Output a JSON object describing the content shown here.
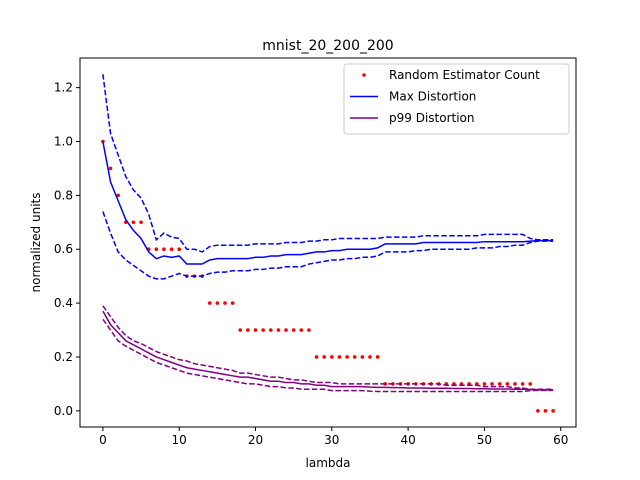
{
  "chart_data": {
    "type": "line",
    "title": "mnist_20_200_200",
    "xlabel": "lambda",
    "ylabel": "normalized units",
    "xlim": [
      -3.0,
      62.0
    ],
    "ylim": [
      -0.06,
      1.31
    ],
    "xticks": [
      0,
      10,
      20,
      30,
      40,
      50,
      60
    ],
    "yticks": [
      0.0,
      0.2,
      0.4,
      0.6,
      0.8,
      1.0,
      1.2
    ],
    "xtick_labels": [
      "0",
      "10",
      "20",
      "30",
      "40",
      "50",
      "60"
    ],
    "ytick_labels": [
      "0.0",
      "0.2",
      "0.4",
      "0.6",
      "0.8",
      "1.0",
      "1.2"
    ],
    "grid": false,
    "legend_position": "top-right",
    "x": [
      0,
      1,
      2,
      3,
      4,
      5,
      6,
      7,
      8,
      9,
      10,
      11,
      12,
      13,
      14,
      15,
      16,
      17,
      18,
      19,
      20,
      21,
      22,
      23,
      24,
      25,
      26,
      27,
      28,
      29,
      30,
      31,
      32,
      33,
      34,
      35,
      36,
      37,
      38,
      39,
      40,
      41,
      42,
      43,
      44,
      45,
      46,
      47,
      48,
      49,
      50,
      51,
      52,
      53,
      54,
      55,
      56,
      57,
      58,
      59
    ],
    "series": [
      {
        "name": "Random Estimator Count",
        "style": "dots",
        "color": "#ff0000",
        "values": [
          1.0,
          0.9,
          0.8,
          0.7,
          0.7,
          0.7,
          0.6,
          0.6,
          0.6,
          0.6,
          0.6,
          0.5,
          0.5,
          0.5,
          0.4,
          0.4,
          0.4,
          0.4,
          0.3,
          0.3,
          0.3,
          0.3,
          0.3,
          0.3,
          0.3,
          0.3,
          0.3,
          0.3,
          0.2,
          0.2,
          0.2,
          0.2,
          0.2,
          0.2,
          0.2,
          0.2,
          0.2,
          0.1,
          0.1,
          0.1,
          0.1,
          0.1,
          0.1,
          0.1,
          0.1,
          0.1,
          0.1,
          0.1,
          0.1,
          0.1,
          0.1,
          0.1,
          0.1,
          0.1,
          0.1,
          0.1,
          0.1,
          0.0,
          0.0,
          0.0
        ]
      },
      {
        "name": "Max Distortion",
        "style": "line",
        "color": "#0000ff",
        "values": [
          1.0,
          0.85,
          0.78,
          0.71,
          0.67,
          0.64,
          0.59,
          0.565,
          0.575,
          0.57,
          0.575,
          0.545,
          0.545,
          0.545,
          0.56,
          0.565,
          0.565,
          0.565,
          0.565,
          0.565,
          0.57,
          0.57,
          0.575,
          0.575,
          0.58,
          0.58,
          0.58,
          0.585,
          0.59,
          0.59,
          0.595,
          0.595,
          0.6,
          0.6,
          0.6,
          0.6,
          0.605,
          0.62,
          0.62,
          0.62,
          0.62,
          0.62,
          0.625,
          0.625,
          0.625,
          0.625,
          0.625,
          0.625,
          0.625,
          0.625,
          0.628,
          0.628,
          0.628,
          0.628,
          0.628,
          0.628,
          0.63,
          0.632,
          0.632,
          0.632
        ],
        "upper": [
          1.25,
          1.03,
          0.95,
          0.87,
          0.82,
          0.79,
          0.73,
          0.635,
          0.66,
          0.645,
          0.64,
          0.6,
          0.6,
          0.59,
          0.61,
          0.615,
          0.615,
          0.615,
          0.615,
          0.615,
          0.62,
          0.62,
          0.62,
          0.62,
          0.625,
          0.625,
          0.625,
          0.63,
          0.63,
          0.635,
          0.635,
          0.64,
          0.64,
          0.64,
          0.64,
          0.64,
          0.64,
          0.645,
          0.645,
          0.645,
          0.645,
          0.645,
          0.65,
          0.65,
          0.65,
          0.65,
          0.65,
          0.65,
          0.65,
          0.65,
          0.655,
          0.655,
          0.655,
          0.655,
          0.655,
          0.655,
          0.64,
          0.635,
          0.635,
          0.635
        ],
        "lower": [
          0.74,
          0.66,
          0.59,
          0.56,
          0.54,
          0.52,
          0.5,
          0.49,
          0.49,
          0.5,
          0.51,
          0.5,
          0.5,
          0.5,
          0.51,
          0.515,
          0.515,
          0.52,
          0.52,
          0.52,
          0.525,
          0.525,
          0.53,
          0.53,
          0.535,
          0.535,
          0.535,
          0.545,
          0.55,
          0.555,
          0.56,
          0.56,
          0.565,
          0.565,
          0.57,
          0.57,
          0.575,
          0.59,
          0.59,
          0.59,
          0.59,
          0.595,
          0.595,
          0.6,
          0.6,
          0.6,
          0.6,
          0.6,
          0.6,
          0.605,
          0.605,
          0.605,
          0.61,
          0.61,
          0.615,
          0.615,
          0.625,
          0.63,
          0.63,
          0.63
        ]
      },
      {
        "name": "p99 Distortion",
        "style": "line",
        "color": "#800080",
        "values": [
          0.37,
          0.32,
          0.29,
          0.26,
          0.245,
          0.23,
          0.215,
          0.2,
          0.19,
          0.18,
          0.17,
          0.16,
          0.155,
          0.15,
          0.145,
          0.14,
          0.135,
          0.13,
          0.125,
          0.125,
          0.12,
          0.115,
          0.11,
          0.11,
          0.105,
          0.105,
          0.1,
          0.1,
          0.095,
          0.095,
          0.09,
          0.09,
          0.09,
          0.09,
          0.09,
          0.088,
          0.087,
          0.087,
          0.086,
          0.086,
          0.085,
          0.085,
          0.085,
          0.084,
          0.084,
          0.084,
          0.083,
          0.083,
          0.083,
          0.082,
          0.082,
          0.081,
          0.081,
          0.081,
          0.08,
          0.08,
          0.079,
          0.078,
          0.078,
          0.078
        ],
        "upper": [
          0.39,
          0.35,
          0.31,
          0.28,
          0.26,
          0.25,
          0.235,
          0.22,
          0.21,
          0.2,
          0.19,
          0.185,
          0.175,
          0.17,
          0.165,
          0.16,
          0.155,
          0.15,
          0.14,
          0.14,
          0.135,
          0.13,
          0.125,
          0.125,
          0.12,
          0.115,
          0.115,
          0.11,
          0.105,
          0.105,
          0.105,
          0.1,
          0.1,
          0.1,
          0.1,
          0.1,
          0.1,
          0.1,
          0.1,
          0.1,
          0.1,
          0.1,
          0.1,
          0.1,
          0.1,
          0.095,
          0.095,
          0.095,
          0.095,
          0.095,
          0.09,
          0.09,
          0.09,
          0.09,
          0.085,
          0.085,
          0.08,
          0.08,
          0.08,
          0.08
        ],
        "lower": [
          0.34,
          0.3,
          0.26,
          0.24,
          0.225,
          0.21,
          0.195,
          0.18,
          0.17,
          0.16,
          0.15,
          0.14,
          0.135,
          0.13,
          0.125,
          0.12,
          0.115,
          0.11,
          0.105,
          0.1,
          0.1,
          0.095,
          0.09,
          0.09,
          0.085,
          0.085,
          0.08,
          0.08,
          0.08,
          0.08,
          0.075,
          0.075,
          0.075,
          0.075,
          0.075,
          0.073,
          0.072,
          0.072,
          0.072,
          0.072,
          0.072,
          0.072,
          0.072,
          0.072,
          0.072,
          0.072,
          0.072,
          0.072,
          0.072,
          0.072,
          0.072,
          0.072,
          0.072,
          0.072,
          0.072,
          0.072,
          0.075,
          0.076,
          0.076,
          0.076
        ]
      }
    ]
  }
}
